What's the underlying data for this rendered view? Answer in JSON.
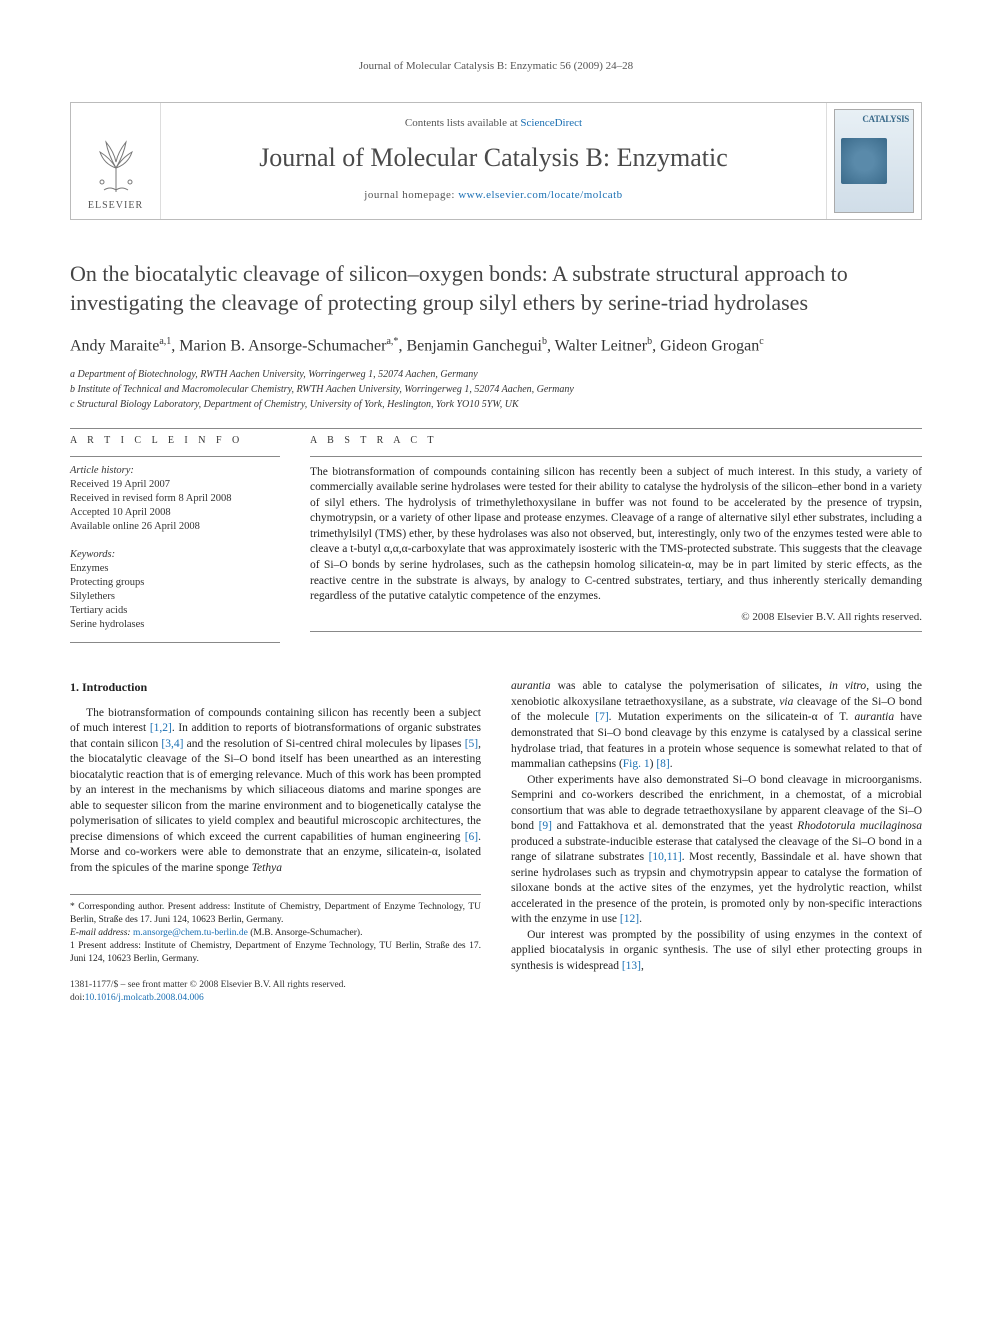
{
  "running_head": "Journal of Molecular Catalysis B: Enzymatic 56 (2009) 24–28",
  "masthead": {
    "contents_prefix": "Contents lists available at ",
    "contents_link": "ScienceDirect",
    "journal_name": "Journal of Molecular Catalysis B: Enzymatic",
    "homepage_prefix": "journal homepage: ",
    "homepage_url": "www.elsevier.com/locate/molcatb",
    "publisher_label": "ELSEVIER",
    "cover_brand": "CATALYSIS"
  },
  "article": {
    "title": "On the biocatalytic cleavage of silicon–oxygen bonds: A substrate structural approach to investigating the cleavage of protecting group silyl ethers by serine-triad hydrolases",
    "authors_html": "Andy Maraite<sup>a,1</sup>, Marion B. Ansorge-Schumacher<sup>a,*</sup>, Benjamin Ganchegui<sup>b</sup>, Walter Leitner<sup>b</sup>, Gideon Grogan<sup>c</sup>",
    "affiliations": [
      "a Department of Biotechnology, RWTH Aachen University, Worringerweg 1, 52074 Aachen, Germany",
      "b Institute of Technical and Macromolecular Chemistry, RWTH Aachen University, Worringerweg 1, 52074 Aachen, Germany",
      "c Structural Biology Laboratory, Department of Chemistry, University of York, Heslington, York YO10 5YW, UK"
    ]
  },
  "info": {
    "head": "A R T I C L E  I N F O",
    "history_label": "Article history:",
    "history": [
      "Received 19 April 2007",
      "Received in revised form 8 April 2008",
      "Accepted 10 April 2008",
      "Available online 26 April 2008"
    ],
    "keywords_label": "Keywords:",
    "keywords": [
      "Enzymes",
      "Protecting groups",
      "Silylethers",
      "Tertiary acids",
      "Serine hydrolases"
    ]
  },
  "abstract": {
    "head": "A B S T R A C T",
    "text": "The biotransformation of compounds containing silicon has recently been a subject of much interest. In this study, a variety of commercially available serine hydrolases were tested for their ability to catalyse the hydrolysis of the silicon–ether bond in a variety of silyl ethers. The hydrolysis of trimethylethoxysilane in buffer was not found to be accelerated by the presence of trypsin, chymotrypsin, or a variety of other lipase and protease enzymes. Cleavage of a range of alternative silyl ether substrates, including a trimethylsilyl (TMS) ether, by these hydrolases was also not observed, but, interestingly, only two of the enzymes tested were able to cleave a t-butyl α,α,α-carboxylate that was approximately isosteric with the TMS-protected substrate. This suggests that the cleavage of Si–O bonds by serine hydrolases, such as the cathepsin homolog silicatein-α, may be in part limited by steric effects, as the reactive centre in the substrate is always, by analogy to C-centred substrates, tertiary, and thus inherently sterically demanding regardless of the putative catalytic competence of the enzymes.",
    "copyright": "© 2008 Elsevier B.V. All rights reserved."
  },
  "body": {
    "section_head": "1. Introduction",
    "col1_p1": "The biotransformation of compounds containing silicon has recently been a subject of much interest [1,2]. In addition to reports of biotransformations of organic substrates that contain silicon [3,4] and the resolution of Si-centred chiral molecules by lipases [5], the biocatalytic cleavage of the Si–O bond itself has been unearthed as an interesting biocatalytic reaction that is of emerging relevance. Much of this work has been prompted by an interest in the mechanisms by which siliaceous diatoms and marine sponges are able to sequester silicon from the marine environment and to biogenetically catalyse the polymerisation of silicates to yield complex and beautiful microscopic architectures, the precise dimensions of which exceed the current capabilities of human engineering [6]. Morse and co-workers were able to demonstrate that an enzyme, silicatein-α, isolated from the spicules of the marine sponge Tethya",
    "col2_p1": "aurantia was able to catalyse the polymerisation of silicates, in vitro, using the xenobiotic alkoxysilane tetraethoxysilane, as a substrate, via cleavage of the Si–O bond of the molecule [7]. Mutation experiments on the silicatein-α of T. aurantia have demonstrated that Si–O bond cleavage by this enzyme is catalysed by a classical serine hydrolase triad, that features in a protein whose sequence is somewhat related to that of mammalian cathepsins (Fig. 1) [8].",
    "col2_p2": "Other experiments have also demonstrated Si–O bond cleavage in microorganisms. Semprini and co-workers described the enrichment, in a chemostat, of a microbial consortium that was able to degrade tetraethoxysilane by apparent cleavage of the Si–O bond [9] and Fattakhova et al. demonstrated that the yeast Rhodotorula mucilaginosa produced a substrate-inducible esterase that catalysed the cleavage of the Si–O bond in a range of silatrane substrates [10,11]. Most recently, Bassindale et al. have shown that serine hydrolases such as trypsin and chymotrypsin appear to catalyse the formation of siloxane bonds at the active sites of the enzymes, yet the hydrolytic reaction, whilst accelerated in the presence of the protein, is promoted only by non-specific interactions with the enzyme in use [12].",
    "col2_p3": "Our interest was prompted by the possibility of using enzymes in the context of applied biocatalysis in organic synthesis. The use of silyl ether protecting groups in synthesis is widespread [13],"
  },
  "footnotes": {
    "corr": "* Corresponding author. Present address: Institute of Chemistry, Department of Enzyme Technology, TU Berlin, Straße des 17. Juni 124, 10623 Berlin, Germany.",
    "email_label": "E-mail address: ",
    "email": "m.ansorge@chem.tu-berlin.de",
    "email_suffix": " (M.B. Ansorge-Schumacher).",
    "note1": "1 Present address: Institute of Chemistry, Department of Enzyme Technology, TU Berlin, Straße des 17. Juni 124, 10623 Berlin, Germany."
  },
  "footer": {
    "line1": "1381-1177/$ – see front matter © 2008 Elsevier B.V. All rights reserved.",
    "doi_prefix": "doi:",
    "doi": "10.1016/j.molcatb.2008.04.006"
  },
  "colors": {
    "link": "#1a6fb3",
    "text": "#333333",
    "rule": "#888888"
  }
}
